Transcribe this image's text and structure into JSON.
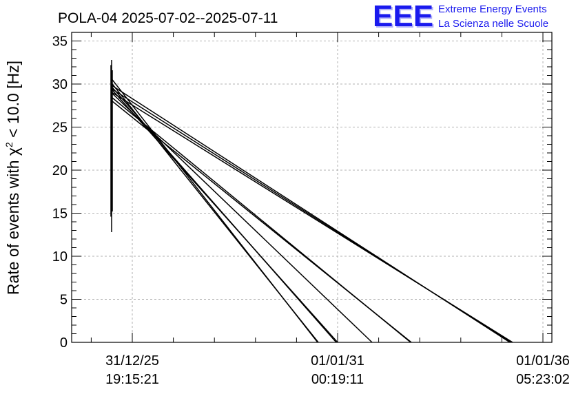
{
  "chart_data": {
    "type": "line",
    "title": "POLA-04 2025-07-02--2025-07-11",
    "ylabel_prefix": "Rate of events with ",
    "ylabel_chi": "χ",
    "ylabel_sup": "2",
    "ylabel_suffix": " < 10.0 [Hz]",
    "xlabel": "",
    "ylim": [
      0,
      36
    ],
    "y_ticks": [
      0,
      5,
      10,
      15,
      20,
      25,
      30,
      35
    ],
    "grid": true,
    "x_ticks": [
      {
        "date": "31/12/25",
        "time": "19:15:21"
      },
      {
        "date": "01/01/31",
        "time": "00:19:11"
      },
      {
        "date": "01/01/36",
        "time": "05:23:02"
      }
    ],
    "spike": {
      "x": "2025-07-02..2025-07-11",
      "y_min": 12.8,
      "y_max": 32.8
    },
    "series": [
      {
        "start_y": 30.5,
        "end_x": "~2030-09",
        "end_y": 0
      },
      {
        "start_y": 30.0,
        "end_x": "~2030-09",
        "end_y": 0
      },
      {
        "start_y": 29.6,
        "end_x": "~2031-01",
        "end_y": 0
      },
      {
        "start_y": 29.3,
        "end_x": "~2031-01",
        "end_y": 0
      },
      {
        "start_y": 28.9,
        "end_x": "~2031-11",
        "end_y": 0
      },
      {
        "start_y": 28.4,
        "end_x": "~2032-09",
        "end_y": 0
      },
      {
        "start_y": 28.0,
        "end_x": "~2032-09",
        "end_y": 0
      },
      {
        "start_y": 29.8,
        "end_x": "~2035-01",
        "end_y": 0
      },
      {
        "start_y": 29.4,
        "end_x": "~2035-01",
        "end_y": 0
      },
      {
        "start_y": 29.0,
        "end_x": "~2035-01",
        "end_y": 0
      }
    ]
  },
  "logo": {
    "mark": "EEE",
    "line1": "Extreme Energy Events",
    "line2": "La Scienza nelle Scuole",
    "color": "#1a1aee"
  }
}
